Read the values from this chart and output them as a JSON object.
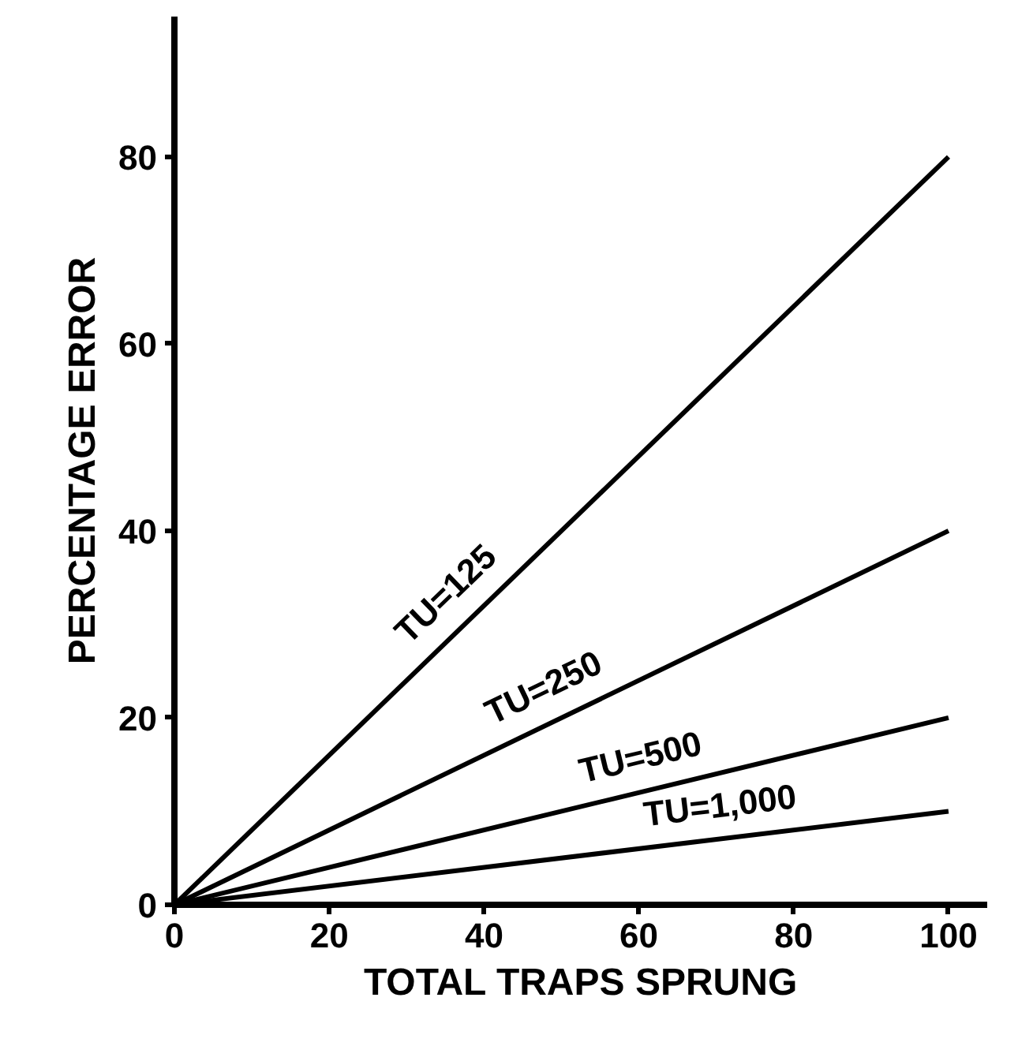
{
  "chart_data": {
    "type": "line",
    "xlabel": "TOTAL TRAPS SPRUNG",
    "ylabel": "PERCENTAGE ERROR",
    "x": [
      0,
      100
    ],
    "series": [
      {
        "name": "TU=125",
        "color": "#000000",
        "values": [
          0,
          80
        ]
      },
      {
        "name": "TU=250",
        "color": "#000000",
        "values": [
          0,
          40
        ]
      },
      {
        "name": "TU=500",
        "color": "#000000",
        "values": [
          0,
          20
        ]
      },
      {
        "name": "TU=1,000",
        "color": "#000000",
        "values": [
          0,
          10
        ]
      }
    ],
    "xlim": [
      0,
      105
    ],
    "ylim": [
      0,
      95
    ],
    "xticks": [
      0,
      20,
      40,
      60,
      80,
      100
    ],
    "yticks": [
      0,
      20,
      40,
      60,
      80
    ],
    "grid": false,
    "marker": "none",
    "line_style": "solid"
  }
}
